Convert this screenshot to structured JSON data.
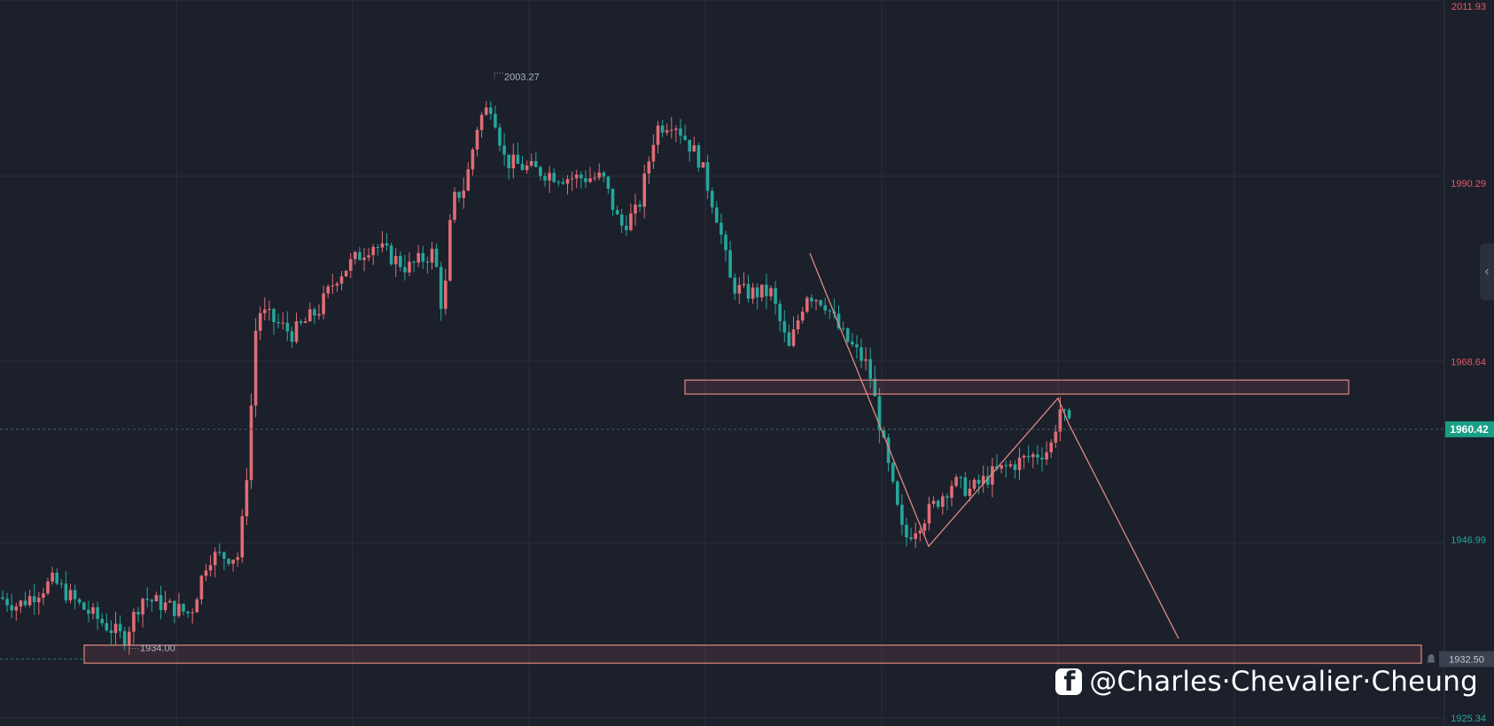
{
  "chart_data": {
    "type": "candlestick",
    "price_scale": {
      "labels": [
        "2011.93",
        "1990.29",
        "1968.64",
        "1946.99",
        "1925.34"
      ],
      "current_price": "1960.42",
      "alert_price": "1932.50"
    },
    "annotations": {
      "high_label": "2003.27",
      "low_label": "1934.00"
    },
    "zones": [
      {
        "name": "resistance-zone",
        "price_top": 1966.4,
        "price_bottom": 1964.7
      },
      {
        "name": "support-zone",
        "price_top": 1934.2,
        "price_bottom": 1932.0
      }
    ],
    "drawn_path": [
      1981.8,
      1946.2,
      1964.2,
      1961.1,
      1935.0
    ],
    "colors": {
      "up": "#e06c75",
      "down": "#26a69a",
      "grid": "#2a303c",
      "zone_border": "#e08a80",
      "zone_fill": "rgba(224,108,117,0.13)",
      "current_tag": "#1a9e86",
      "alert_tag": "#3a4250",
      "label_red": "#e05a66",
      "label_green": "#26a69a"
    },
    "grid": true
  },
  "watermark": {
    "icon": "facebook-icon",
    "text": "@Charles·Chevalier·Cheung"
  },
  "sidebar": {
    "collapse_icon": "chevron-left-icon",
    "collapse_glyph": "‹"
  }
}
